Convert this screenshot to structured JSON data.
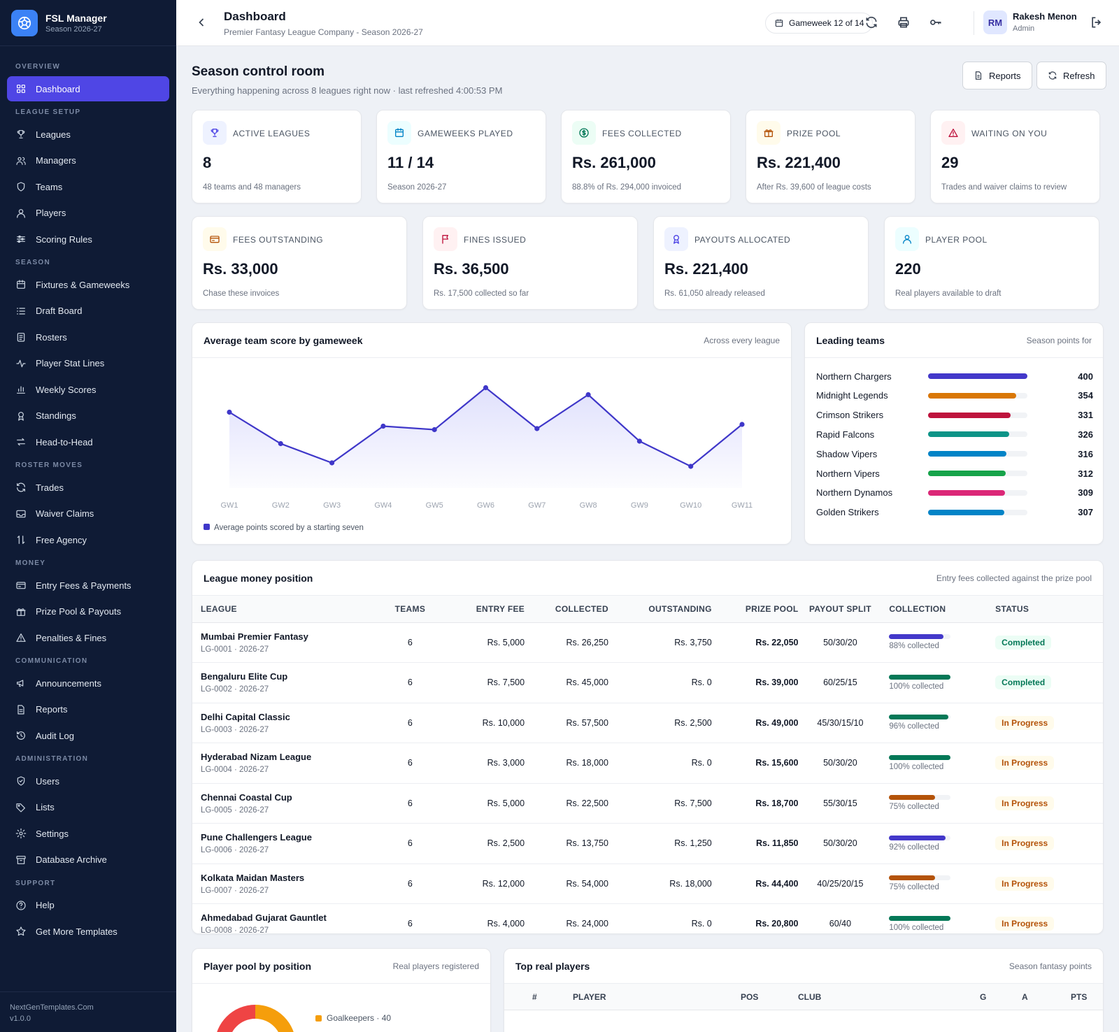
{
  "brand": {
    "name": "FSL Manager",
    "sub": "Season 2026-27"
  },
  "nav": [
    {
      "section": "OVERVIEW",
      "items": [
        {
          "label": "Dashboard",
          "icon": "grid-icon",
          "active": true
        }
      ]
    },
    {
      "section": "LEAGUE SETUP",
      "items": [
        {
          "label": "Leagues",
          "icon": "trophy-icon"
        },
        {
          "label": "Managers",
          "icon": "users-icon"
        },
        {
          "label": "Teams",
          "icon": "shield-icon"
        },
        {
          "label": "Players",
          "icon": "user-icon"
        },
        {
          "label": "Scoring Rules",
          "icon": "sliders-icon"
        }
      ]
    },
    {
      "section": "SEASON",
      "items": [
        {
          "label": "Fixtures & Gameweeks",
          "icon": "calendar-icon"
        },
        {
          "label": "Draft Board",
          "icon": "list-icon"
        },
        {
          "label": "Rosters",
          "icon": "clipboard-icon"
        },
        {
          "label": "Player Stat Lines",
          "icon": "activity-icon"
        },
        {
          "label": "Weekly Scores",
          "icon": "bar-chart-icon"
        },
        {
          "label": "Standings",
          "icon": "award-icon"
        },
        {
          "label": "Head-to-Head",
          "icon": "swap-icon"
        }
      ]
    },
    {
      "section": "ROSTER MOVES",
      "items": [
        {
          "label": "Trades",
          "icon": "refresh-icon"
        },
        {
          "label": "Waiver Claims",
          "icon": "inbox-icon"
        },
        {
          "label": "Free Agency",
          "icon": "arrows-updown-icon"
        }
      ]
    },
    {
      "section": "MONEY",
      "items": [
        {
          "label": "Entry Fees & Payments",
          "icon": "credit-card-icon"
        },
        {
          "label": "Prize Pool & Payouts",
          "icon": "gift-icon"
        },
        {
          "label": "Penalties & Fines",
          "icon": "alert-triangle-icon"
        }
      ]
    },
    {
      "section": "COMMUNICATION",
      "items": [
        {
          "label": "Announcements",
          "icon": "megaphone-icon"
        },
        {
          "label": "Reports",
          "icon": "file-text-icon"
        },
        {
          "label": "Audit Log",
          "icon": "history-icon"
        }
      ]
    },
    {
      "section": "ADMINISTRATION",
      "items": [
        {
          "label": "Users",
          "icon": "shield-check-icon"
        },
        {
          "label": "Lists",
          "icon": "tag-icon"
        },
        {
          "label": "Settings",
          "icon": "gear-icon"
        },
        {
          "label": "Database Archive",
          "icon": "archive-icon"
        }
      ]
    },
    {
      "section": "SUPPORT",
      "items": [
        {
          "label": "Help",
          "icon": "help-circle-icon"
        },
        {
          "label": "Get More Templates",
          "icon": "star-icon"
        }
      ]
    }
  ],
  "footer": {
    "site": "NextGenTemplates.Com",
    "version": "v1.0.0"
  },
  "header": {
    "title": "Dashboard",
    "subtitle": "Premier Fantasy League Company - Season 2026-27",
    "gameweek": "Gameweek 12 of 14",
    "user_initials": "RM",
    "user_name": "Rakesh Menon",
    "user_role": "Admin"
  },
  "page": {
    "title": "Season control room",
    "subtitle": "Everything happening across 8 leagues right now · last refreshed 4:00:53 PM",
    "reports_label": "Reports",
    "refresh_label": "Refresh"
  },
  "kpis_row1": [
    {
      "label": "ACTIVE LEAGUES",
      "value": "8",
      "sub": "48 teams and 48 managers",
      "icon": "trophy-icon",
      "color": "#4f46e5",
      "bg": "#eef2ff"
    },
    {
      "label": "GAMEWEEKS PLAYED",
      "value": "11 / 14",
      "sub": "Season 2026-27",
      "icon": "calendar-icon",
      "color": "#0284c7",
      "bg": "#ecfeff"
    },
    {
      "label": "FEES COLLECTED",
      "value": "Rs. 261,000",
      "sub": "88.8% of Rs. 294,000 invoiced",
      "icon": "dollar-circle-icon",
      "color": "#047857",
      "bg": "#ecfdf5"
    },
    {
      "label": "PRIZE POOL",
      "value": "Rs. 221,400",
      "sub": "After Rs. 39,600 of league costs",
      "icon": "gift-icon",
      "color": "#b45309",
      "bg": "#fffbeb"
    },
    {
      "label": "WAITING ON YOU",
      "value": "29",
      "sub": "Trades and waiver claims to review",
      "icon": "alert-triangle-icon",
      "color": "#be123c",
      "bg": "#fff1f2"
    }
  ],
  "kpis_row2": [
    {
      "label": "FEES OUTSTANDING",
      "value": "Rs. 33,000",
      "sub": "Chase these invoices",
      "icon": "credit-card-icon",
      "color": "#b45309",
      "bg": "#fffbeb"
    },
    {
      "label": "FINES ISSUED",
      "value": "Rs. 36,500",
      "sub": "Rs. 17,500 collected so far",
      "icon": "flag-icon",
      "color": "#be123c",
      "bg": "#fff1f2"
    },
    {
      "label": "PAYOUTS ALLOCATED",
      "value": "Rs. 221,400",
      "sub": "Rs. 61,050 already released",
      "icon": "award-icon",
      "color": "#4f46e5",
      "bg": "#eef2ff"
    },
    {
      "label": "PLAYER POOL",
      "value": "220",
      "sub": "Real players available to draft",
      "icon": "user-icon",
      "color": "#0284c7",
      "bg": "#ecfeff"
    }
  ],
  "score_chart": {
    "title": "Average team score by gameweek",
    "right": "Across every league",
    "legend": "Average points scored by a starting seven"
  },
  "chart_data": {
    "type": "area",
    "categories": [
      "GW1",
      "GW2",
      "GW3",
      "GW4",
      "GW5",
      "GW6",
      "GW7",
      "GW8",
      "GW9",
      "GW10",
      "GW11"
    ],
    "series": [
      {
        "name": "Average points scored by a starting seven",
        "values": [
          58.5,
          49.5,
          44,
          54.5,
          53.5,
          65.5,
          53.8,
          63.5,
          50.2,
          43,
          55
        ]
      }
    ],
    "ylim": [
      36,
      70
    ],
    "color": "#3f37c9",
    "grid": false,
    "legend": "bottom-left"
  },
  "leading": {
    "title": "Leading teams",
    "right": "Season points for",
    "teams": [
      {
        "name": "Northern Chargers",
        "value": "400",
        "pct": 1.0,
        "color": "#4338ca"
      },
      {
        "name": "Midnight Legends",
        "value": "354",
        "pct": 0.885,
        "color": "#d97706"
      },
      {
        "name": "Crimson Strikers",
        "value": "331",
        "pct": 0.83,
        "color": "#be123c"
      },
      {
        "name": "Rapid Falcons",
        "value": "326",
        "pct": 0.815,
        "color": "#0d9488"
      },
      {
        "name": "Shadow Vipers",
        "value": "316",
        "pct": 0.79,
        "color": "#0284c7"
      },
      {
        "name": "Northern Vipers",
        "value": "312",
        "pct": 0.78,
        "color": "#16a34a"
      },
      {
        "name": "Northern Dynamos",
        "value": "309",
        "pct": 0.772,
        "color": "#db2777"
      },
      {
        "name": "Golden Strikers",
        "value": "307",
        "pct": 0.767,
        "color": "#0284c7"
      }
    ]
  },
  "money": {
    "title": "League money position",
    "right": "Entry fees collected against the prize pool",
    "columns": [
      "LEAGUE",
      "TEAMS",
      "ENTRY FEE",
      "COLLECTED",
      "OUTSTANDING",
      "PRIZE POOL",
      "PAYOUT SPLIT",
      "COLLECTION",
      "STATUS"
    ],
    "rows": [
      {
        "name": "Mumbai Premier Fantasy",
        "sub": "LG-0001 · 2026-27",
        "teams": "6",
        "fee": "Rs. 5,000",
        "collected": "Rs. 26,250",
        "outstanding": "Rs. 3,750",
        "prize": "Rs. 22,050",
        "split": "50/30/20",
        "pct": 0.88,
        "pct_label": "88% collected",
        "bar": "#4338ca",
        "status": "Completed"
      },
      {
        "name": "Bengaluru Elite Cup",
        "sub": "LG-0002 · 2026-27",
        "teams": "6",
        "fee": "Rs. 7,500",
        "collected": "Rs. 45,000",
        "outstanding": "Rs. 0",
        "prize": "Rs. 39,000",
        "split": "60/25/15",
        "pct": 1.0,
        "pct_label": "100% collected",
        "bar": "#047857",
        "status": "Completed"
      },
      {
        "name": "Delhi Capital Classic",
        "sub": "LG-0003 · 2026-27",
        "teams": "6",
        "fee": "Rs. 10,000",
        "collected": "Rs. 57,500",
        "outstanding": "Rs. 2,500",
        "prize": "Rs. 49,000",
        "split": "45/30/15/10",
        "pct": 0.96,
        "pct_label": "96% collected",
        "bar": "#047857",
        "status": "In Progress"
      },
      {
        "name": "Hyderabad Nizam League",
        "sub": "LG-0004 · 2026-27",
        "teams": "6",
        "fee": "Rs. 3,000",
        "collected": "Rs. 18,000",
        "outstanding": "Rs. 0",
        "prize": "Rs. 15,600",
        "split": "50/30/20",
        "pct": 1.0,
        "pct_label": "100% collected",
        "bar": "#047857",
        "status": "In Progress"
      },
      {
        "name": "Chennai Coastal Cup",
        "sub": "LG-0005 · 2026-27",
        "teams": "6",
        "fee": "Rs. 5,000",
        "collected": "Rs. 22,500",
        "outstanding": "Rs. 7,500",
        "prize": "Rs. 18,700",
        "split": "55/30/15",
        "pct": 0.75,
        "pct_label": "75% collected",
        "bar": "#b45309",
        "status": "In Progress"
      },
      {
        "name": "Pune Challengers League",
        "sub": "LG-0006 · 2026-27",
        "teams": "6",
        "fee": "Rs. 2,500",
        "collected": "Rs. 13,750",
        "outstanding": "Rs. 1,250",
        "prize": "Rs. 11,850",
        "split": "50/30/20",
        "pct": 0.92,
        "pct_label": "92% collected",
        "bar": "#4338ca",
        "status": "In Progress"
      },
      {
        "name": "Kolkata Maidan Masters",
        "sub": "LG-0007 · 2026-27",
        "teams": "6",
        "fee": "Rs. 12,000",
        "collected": "Rs. 54,000",
        "outstanding": "Rs. 18,000",
        "prize": "Rs. 44,400",
        "split": "40/25/20/15",
        "pct": 0.75,
        "pct_label": "75% collected",
        "bar": "#b45309",
        "status": "In Progress"
      },
      {
        "name": "Ahmedabad Gujarat Gauntlet",
        "sub": "LG-0008 · 2026-27",
        "teams": "6",
        "fee": "Rs. 4,000",
        "collected": "Rs. 24,000",
        "outstanding": "Rs. 0",
        "prize": "Rs. 20,800",
        "split": "60/40",
        "pct": 1.0,
        "pct_label": "100% collected",
        "bar": "#047857",
        "status": "In Progress"
      }
    ]
  },
  "pool": {
    "title": "Player pool by position",
    "right": "Real players registered",
    "legend_first": "Goalkeepers · 40"
  },
  "top": {
    "title": "Top real players",
    "right": "Season fantasy points",
    "columns": [
      "#",
      "PLAYER",
      "POS",
      "CLUB",
      "G",
      "A",
      "PTS"
    ]
  }
}
